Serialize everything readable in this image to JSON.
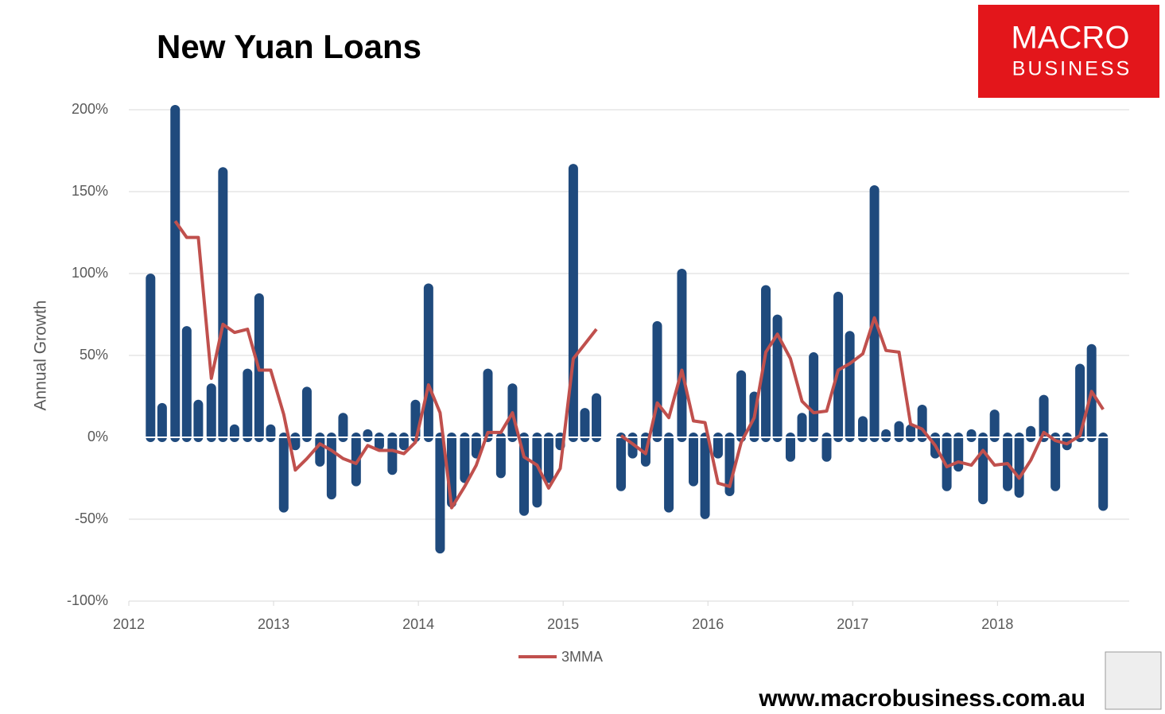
{
  "chart_data": {
    "type": "bar",
    "title": "New Yuan Loans",
    "y_label": "Annual Growth",
    "logo": [
      "MACRO",
      "BUSINESS"
    ],
    "footer": "www.macrobusiness.com.au",
    "x": [
      2012.15,
      2012.23,
      2012.32,
      2012.4,
      2012.48,
      2012.57,
      2012.65,
      2012.73,
      2012.82,
      2012.9,
      2012.98,
      2013.07,
      2013.15,
      2013.23,
      2013.32,
      2013.4,
      2013.48,
      2013.57,
      2013.65,
      2013.73,
      2013.82,
      2013.9,
      2013.98,
      2014.07,
      2014.15,
      2014.23,
      2014.32,
      2014.4,
      2014.48,
      2014.57,
      2014.65,
      2014.73,
      2014.82,
      2014.9,
      2014.98,
      2015.07,
      2015.15,
      2015.23,
      2015.32,
      2015.4,
      2015.48,
      2015.57,
      2015.65,
      2015.73,
      2015.82,
      2015.9,
      2015.98,
      2016.07,
      2016.15,
      2016.23,
      2016.32,
      2016.4,
      2016.48,
      2016.57,
      2016.65,
      2016.73,
      2016.82,
      2016.9,
      2016.98,
      2017.07,
      2017.15,
      2017.23,
      2017.32,
      2017.4,
      2017.48,
      2017.57,
      2017.65,
      2017.73,
      2017.82,
      2017.9,
      2017.98,
      2018.07,
      2018.15,
      2018.23,
      2018.32,
      2018.4,
      2018.48,
      2018.57,
      2018.65,
      2018.73
    ],
    "series": [
      {
        "type": "bar",
        "color": "#1f4a7d",
        "values": [
          97,
          18,
          200,
          65,
          20,
          30,
          162,
          5,
          39,
          85,
          5,
          -43,
          -5,
          28,
          -15,
          -35,
          12,
          -27,
          2,
          -5,
          -20,
          -5,
          20,
          91,
          -68,
          -40,
          -25,
          -10,
          39,
          -22,
          30,
          -45,
          -40,
          -25,
          -5,
          164,
          15,
          24,
          null,
          -30,
          -10,
          -15,
          68,
          -43,
          100,
          -27,
          -47,
          -10,
          -33,
          38,
          25,
          90,
          72,
          -12,
          12,
          49,
          -12,
          86,
          62,
          10,
          151,
          2,
          7,
          5,
          17,
          -10,
          -30,
          -18,
          2,
          -38,
          14,
          -30,
          -34,
          4,
          23,
          -30,
          -5,
          42,
          54,
          -42
        ]
      },
      {
        "type": "line",
        "name": "3MMA",
        "color": "#c0504d",
        "values": [
          null,
          null,
          132,
          122,
          122,
          36,
          69,
          64,
          66,
          41,
          41,
          14,
          -20,
          -13,
          -4,
          -8,
          -13,
          -16,
          -5,
          -8,
          -8,
          -10,
          -3,
          32,
          15,
          -43,
          -30,
          -17,
          3,
          3,
          15,
          -12,
          -17,
          -31,
          -19,
          48,
          57,
          66,
          null,
          1,
          -4,
          -10,
          21,
          12,
          41,
          10,
          9,
          -28,
          -30,
          -3,
          12,
          52,
          63,
          48,
          22,
          15,
          16,
          41,
          45,
          51,
          73,
          53,
          52,
          8,
          5,
          -5,
          -18,
          -15,
          -17,
          -8,
          -17,
          -16,
          -25,
          -14,
          3,
          -2,
          -4,
          1,
          28,
          17
        ]
      }
    ],
    "xlim": [
      2012,
      2018.91
    ],
    "xticks": [
      2012,
      2013,
      2014,
      2015,
      2016,
      2017,
      2018
    ],
    "ylim": [
      -100,
      200
    ],
    "yticks": [
      {
        "value": -100,
        "label": "-100%"
      },
      {
        "value": -50,
        "label": "-50%"
      },
      {
        "value": 0,
        "label": "0%"
      },
      {
        "value": 50,
        "label": "50%"
      },
      {
        "value": 100,
        "label": "100%"
      },
      {
        "value": 150,
        "label": "150%"
      },
      {
        "value": 200,
        "label": "200%"
      }
    ],
    "grid": true
  }
}
